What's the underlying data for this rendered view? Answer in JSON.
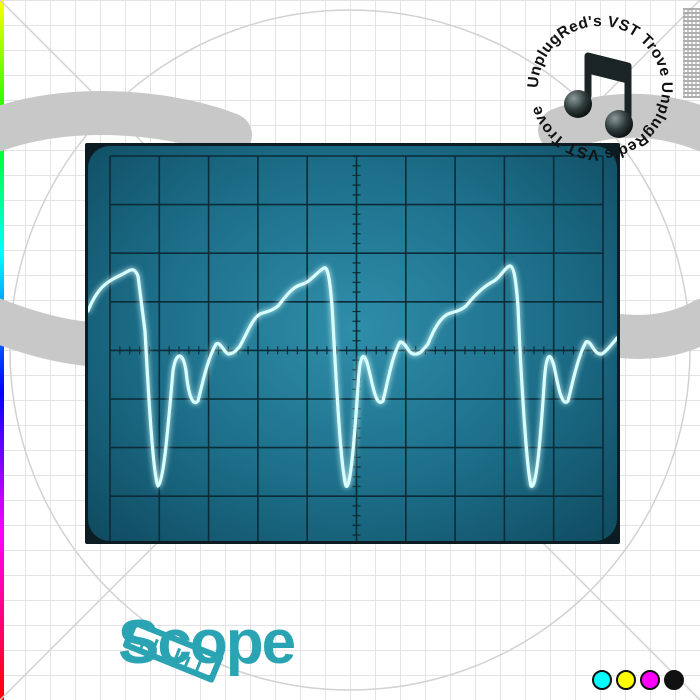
{
  "title": "Scope",
  "badge": {
    "text": "UnplugRed's VST Trove UnplugRed's VST Trove",
    "icon": "music-note-icon"
  },
  "icons": {
    "logo": "ruler-icon",
    "badge": "music-note-icon"
  },
  "scope": {
    "screen_color": "#1c6d88",
    "trace_color": "#c8ffff",
    "grid_color": "#0b2b36"
  },
  "cmyk": [
    "#00ffff",
    "#ffff00",
    "#ff00ff",
    "#111111"
  ]
}
